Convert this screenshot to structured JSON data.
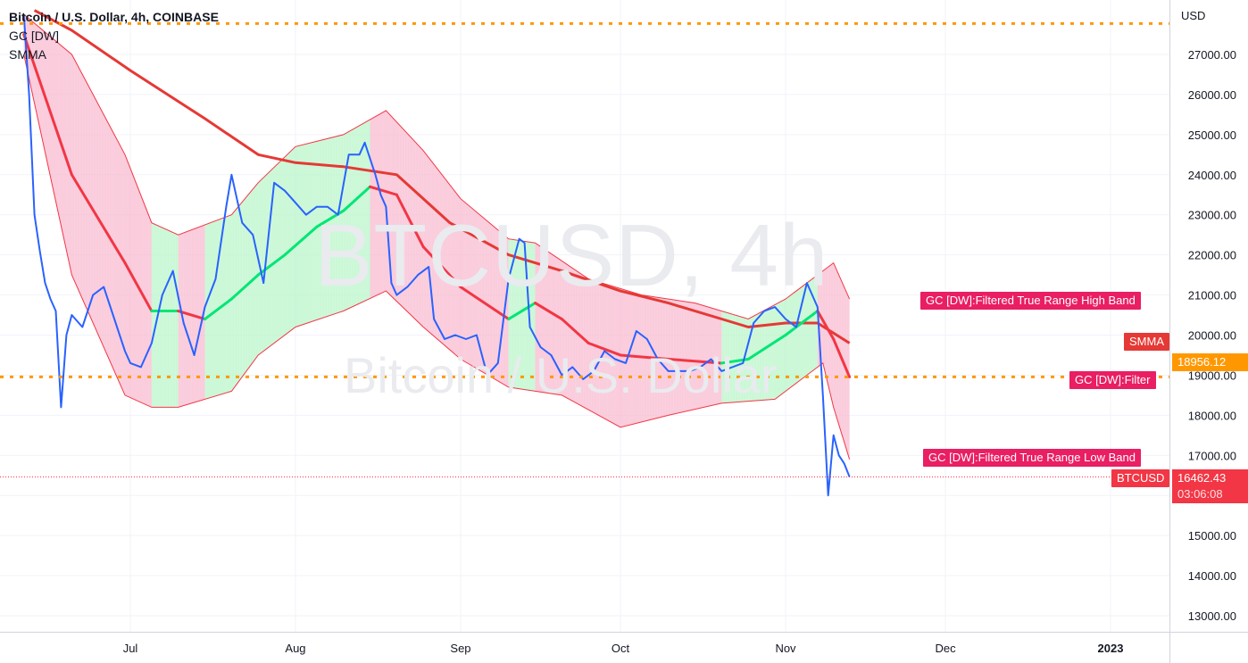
{
  "header": {
    "title": "Bitcoin / U.S. Dollar, 4h, COINBASE",
    "indicator_1": "GC [DW]",
    "indicator_2": "SMMA"
  },
  "watermark": {
    "symbol": "BTCUSD, 4h",
    "name": "Bitcoin / U.S. Dollar"
  },
  "axis": {
    "currency": "USD",
    "y_ticks": [
      "27000.00",
      "26000.00",
      "25000.00",
      "24000.00",
      "23000.00",
      "22000.00",
      "21000.00",
      "20000.00",
      "19000.00",
      "18000.00",
      "17000.00",
      "15000.00",
      "14000.00",
      "13000.00"
    ],
    "x_ticks": [
      "Jul",
      "Aug",
      "Sep",
      "Oct",
      "Nov",
      "Dec",
      "2023"
    ]
  },
  "labels": {
    "high_band": "GC [DW]:Filtered True Range High Band",
    "smma": "SMMA",
    "filter_value": "18956.12",
    "filter": "GC [DW]:Filter",
    "low_band": "GC [DW]:Filtered True Range Low Band",
    "symbol": "BTCUSD",
    "last_price": "16462.43",
    "countdown": "03:06:08"
  },
  "colors": {
    "price_line": "#2962ff",
    "smma": "#e53935",
    "filter_up": "#00e676",
    "filter_down": "#f23645",
    "band_up_fill": "#b9f6ca",
    "band_down_fill": "#f8bbd0",
    "level_line": "#ff9800",
    "tag_red": "#e91e63",
    "tag_orange": "#ff9800",
    "tag_price": "#f23645"
  },
  "chart_data": {
    "type": "line",
    "title": "Bitcoin / U.S. Dollar, 4h, COINBASE",
    "ylim": [
      12700,
      27800
    ],
    "x_range": [
      "2022-06-10",
      "2023-01-12"
    ],
    "levels": [
      27770,
      18956.12
    ],
    "series": [
      {
        "name": "BTCUSD",
        "points": [
          [
            "2022-06-11",
            28000
          ],
          [
            "2022-06-12",
            26000
          ],
          [
            "2022-06-13",
            23000
          ],
          [
            "2022-06-14",
            22100
          ],
          [
            "2022-06-15",
            21300
          ],
          [
            "2022-06-16",
            20900
          ],
          [
            "2022-06-17",
            20600
          ],
          [
            "2022-06-18",
            18200
          ],
          [
            "2022-06-19",
            20000
          ],
          [
            "2022-06-20",
            20500
          ],
          [
            "2022-06-22",
            20200
          ],
          [
            "2022-06-24",
            21000
          ],
          [
            "2022-06-26",
            21200
          ],
          [
            "2022-06-28",
            20400
          ],
          [
            "2022-06-30",
            19600
          ],
          [
            "2022-07-01",
            19300
          ],
          [
            "2022-07-03",
            19200
          ],
          [
            "2022-07-05",
            19800
          ],
          [
            "2022-07-07",
            21000
          ],
          [
            "2022-07-09",
            21600
          ],
          [
            "2022-07-11",
            20300
          ],
          [
            "2022-07-13",
            19500
          ],
          [
            "2022-07-15",
            20700
          ],
          [
            "2022-07-17",
            21400
          ],
          [
            "2022-07-19",
            23200
          ],
          [
            "2022-07-20",
            24000
          ],
          [
            "2022-07-22",
            22800
          ],
          [
            "2022-07-24",
            22500
          ],
          [
            "2022-07-26",
            21300
          ],
          [
            "2022-07-28",
            23800
          ],
          [
            "2022-07-30",
            23600
          ],
          [
            "2022-08-01",
            23300
          ],
          [
            "2022-08-03",
            23000
          ],
          [
            "2022-08-05",
            23200
          ],
          [
            "2022-08-07",
            23200
          ],
          [
            "2022-08-09",
            23000
          ],
          [
            "2022-08-11",
            24500
          ],
          [
            "2022-08-13",
            24500
          ],
          [
            "2022-08-14",
            24800
          ],
          [
            "2022-08-16",
            24000
          ],
          [
            "2022-08-17",
            23500
          ],
          [
            "2022-08-18",
            23200
          ],
          [
            "2022-08-19",
            21300
          ],
          [
            "2022-08-20",
            21000
          ],
          [
            "2022-08-22",
            21200
          ],
          [
            "2022-08-24",
            21500
          ],
          [
            "2022-08-26",
            21700
          ],
          [
            "2022-08-27",
            20400
          ],
          [
            "2022-08-29",
            19900
          ],
          [
            "2022-08-31",
            20000
          ],
          [
            "2022-09-02",
            19900
          ],
          [
            "2022-09-04",
            20000
          ],
          [
            "2022-09-06",
            19000
          ],
          [
            "2022-09-08",
            19300
          ],
          [
            "2022-09-10",
            21400
          ],
          [
            "2022-09-12",
            22400
          ],
          [
            "2022-09-13",
            22300
          ],
          [
            "2022-09-14",
            20200
          ],
          [
            "2022-09-16",
            19700
          ],
          [
            "2022-09-18",
            19500
          ],
          [
            "2022-09-20",
            19000
          ],
          [
            "2022-09-22",
            19200
          ],
          [
            "2022-09-24",
            18900
          ],
          [
            "2022-09-26",
            19100
          ],
          [
            "2022-09-28",
            19600
          ],
          [
            "2022-09-30",
            19400
          ],
          [
            "2022-10-02",
            19300
          ],
          [
            "2022-10-04",
            20100
          ],
          [
            "2022-10-06",
            19900
          ],
          [
            "2022-10-08",
            19400
          ],
          [
            "2022-10-10",
            19100
          ],
          [
            "2022-10-12",
            19100
          ],
          [
            "2022-10-14",
            19100
          ],
          [
            "2022-10-16",
            19200
          ],
          [
            "2022-10-18",
            19400
          ],
          [
            "2022-10-20",
            19100
          ],
          [
            "2022-10-22",
            19200
          ],
          [
            "2022-10-24",
            19300
          ],
          [
            "2022-10-26",
            20300
          ],
          [
            "2022-10-28",
            20600
          ],
          [
            "2022-10-30",
            20700
          ],
          [
            "2022-11-01",
            20400
          ],
          [
            "2022-11-03",
            20200
          ],
          [
            "2022-11-05",
            21300
          ],
          [
            "2022-11-07",
            20700
          ],
          [
            "2022-11-08",
            18500
          ],
          [
            "2022-11-09",
            16000
          ],
          [
            "2022-11-10",
            17500
          ],
          [
            "2022-11-11",
            17000
          ],
          [
            "2022-11-12",
            16800
          ],
          [
            "2022-11-13",
            16462.43
          ]
        ]
      },
      {
        "name": "SMMA",
        "points": [
          [
            "2022-06-13",
            28100
          ],
          [
            "2022-06-20",
            27600
          ],
          [
            "2022-07-01",
            26600
          ],
          [
            "2022-07-15",
            25400
          ],
          [
            "2022-07-25",
            24500
          ],
          [
            "2022-08-01",
            24300
          ],
          [
            "2022-08-10",
            24200
          ],
          [
            "2022-08-20",
            24000
          ],
          [
            "2022-08-30",
            22800
          ],
          [
            "2022-09-10",
            22000
          ],
          [
            "2022-09-20",
            21600
          ],
          [
            "2022-10-01",
            21100
          ],
          [
            "2022-10-10",
            20800
          ],
          [
            "2022-10-20",
            20400
          ],
          [
            "2022-10-25",
            20200
          ],
          [
            "2022-11-01",
            20300
          ],
          [
            "2022-11-07",
            20300
          ],
          [
            "2022-11-13",
            19800
          ]
        ]
      },
      {
        "name": "GC [DW]:Filter",
        "points": [
          [
            "2022-06-11",
            27500
          ],
          [
            "2022-06-20",
            24000
          ],
          [
            "2022-06-30",
            21800
          ],
          [
            "2022-07-05",
            20600
          ],
          [
            "2022-07-10",
            20600
          ],
          [
            "2022-07-15",
            20400
          ],
          [
            "2022-07-20",
            20900
          ],
          [
            "2022-07-25",
            21500
          ],
          [
            "2022-07-30",
            22000
          ],
          [
            "2022-08-05",
            22700
          ],
          [
            "2022-08-10",
            23100
          ],
          [
            "2022-08-15",
            23700
          ],
          [
            "2022-08-20",
            23500
          ],
          [
            "2022-08-25",
            22200
          ],
          [
            "2022-09-01",
            21200
          ],
          [
            "2022-09-10",
            20400
          ],
          [
            "2022-09-15",
            20800
          ],
          [
            "2022-09-20",
            20400
          ],
          [
            "2022-09-25",
            19800
          ],
          [
            "2022-10-01",
            19500
          ],
          [
            "2022-10-10",
            19400
          ],
          [
            "2022-10-20",
            19300
          ],
          [
            "2022-10-25",
            19400
          ],
          [
            "2022-11-01",
            20000
          ],
          [
            "2022-11-07",
            20600
          ],
          [
            "2022-11-10",
            19900
          ],
          [
            "2022-11-13",
            18956.12
          ]
        ]
      },
      {
        "name": "GC [DW]:Filtered True Range High Band",
        "points": [
          [
            "2022-06-11",
            28000
          ],
          [
            "2022-06-20",
            27000
          ],
          [
            "2022-06-30",
            24500
          ],
          [
            "2022-07-05",
            22800
          ],
          [
            "2022-07-10",
            22500
          ],
          [
            "2022-07-20",
            23000
          ],
          [
            "2022-07-25",
            23800
          ],
          [
            "2022-08-01",
            24700
          ],
          [
            "2022-08-10",
            25000
          ],
          [
            "2022-08-18",
            25600
          ],
          [
            "2022-08-25",
            24600
          ],
          [
            "2022-09-01",
            23400
          ],
          [
            "2022-09-10",
            22400
          ],
          [
            "2022-09-15",
            22300
          ],
          [
            "2022-09-25",
            21400
          ],
          [
            "2022-10-05",
            21000
          ],
          [
            "2022-10-15",
            20800
          ],
          [
            "2022-10-25",
            20400
          ],
          [
            "2022-11-01",
            20900
          ],
          [
            "2022-11-07",
            21500
          ],
          [
            "2022-11-10",
            21800
          ],
          [
            "2022-11-13",
            20900
          ]
        ]
      },
      {
        "name": "GC [DW]:Filtered True Range Low Band",
        "points": [
          [
            "2022-06-11",
            27000
          ],
          [
            "2022-06-20",
            21500
          ],
          [
            "2022-06-30",
            18500
          ],
          [
            "2022-07-05",
            18200
          ],
          [
            "2022-07-10",
            18200
          ],
          [
            "2022-07-20",
            18600
          ],
          [
            "2022-07-25",
            19500
          ],
          [
            "2022-08-01",
            20200
          ],
          [
            "2022-08-10",
            20600
          ],
          [
            "2022-08-18",
            21100
          ],
          [
            "2022-08-25",
            20200
          ],
          [
            "2022-09-01",
            19400
          ],
          [
            "2022-09-10",
            18700
          ],
          [
            "2022-09-20",
            18500
          ],
          [
            "2022-10-01",
            17700
          ],
          [
            "2022-10-10",
            18000
          ],
          [
            "2022-10-20",
            18300
          ],
          [
            "2022-10-30",
            18400
          ],
          [
            "2022-11-05",
            19000
          ],
          [
            "2022-11-08",
            19300
          ],
          [
            "2022-11-10",
            18200
          ],
          [
            "2022-11-13",
            16900
          ]
        ]
      }
    ]
  }
}
